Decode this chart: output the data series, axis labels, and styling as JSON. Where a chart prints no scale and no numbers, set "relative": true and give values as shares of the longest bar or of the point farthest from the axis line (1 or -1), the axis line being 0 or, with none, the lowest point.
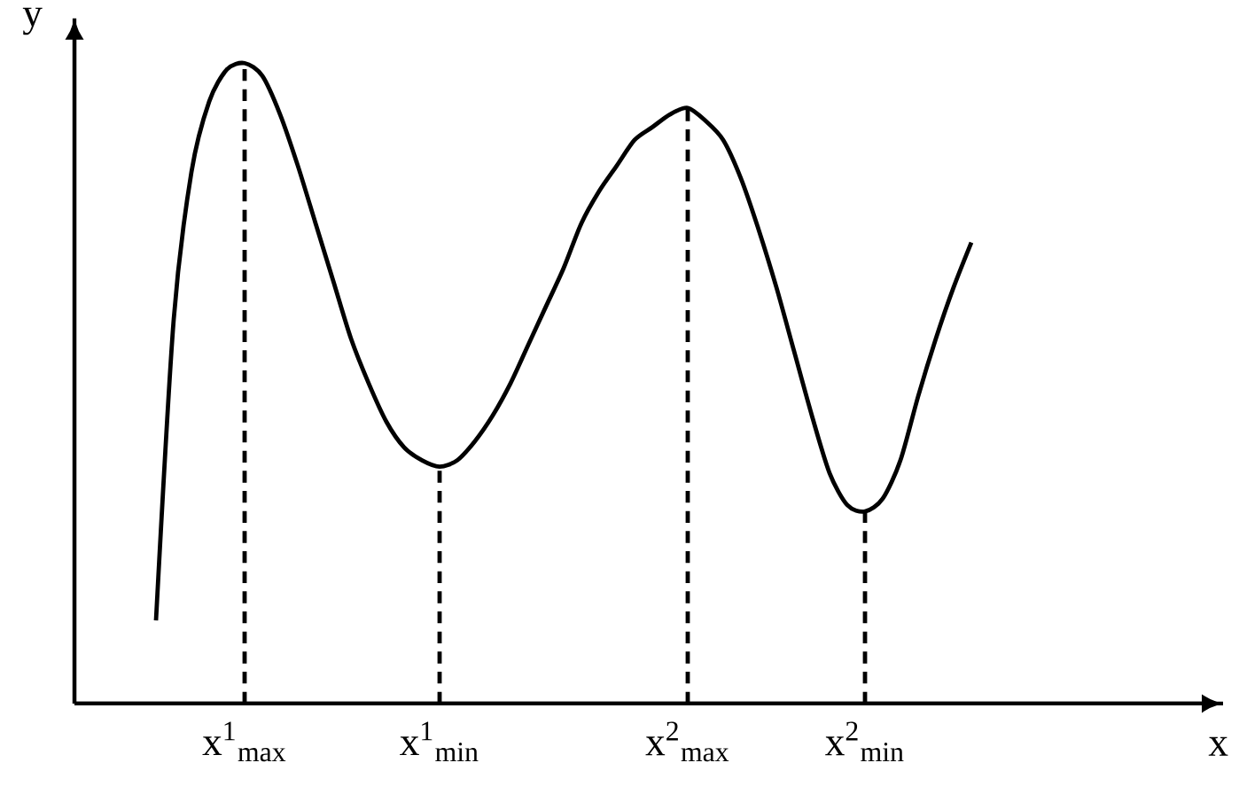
{
  "chart_data": {
    "type": "line",
    "relative": true,
    "annotations": [
      "x"
    ],
    "ylabel": "y",
    "tick_labels": "x",
    "line_style": "solid",
    "categories": [
      null,
      null,
      null,
      null,
      null,
      "x$^{1}$$_{max}$",
      null,
      null,
      null,
      null,
      null,
      null,
      null,
      null,
      null,
      null,
      "x$^{1}$$_{min}$",
      null,
      null,
      null,
      null,
      null,
      null,
      null,
      null,
      null,
      null,
      null,
      null,
      null,
      "x$^{2}$$_{max}$",
      null,
      null,
      null,
      null,
      null,
      null,
      null,
      null,
      null,
      "x$^{2}$$_{min}$",
      null,
      null,
      null,
      null,
      null,
      null
    ],
    "series": [
      {
        "color": "#000000",
        "values": [
          0.13,
          0.6,
          0.83,
          0.94,
          0.99,
          1.0,
          0.98,
          0.92,
          0.84,
          0.75,
          0.66,
          0.57,
          0.5,
          0.44,
          0.4,
          0.38,
          0.37,
          0.38,
          0.41,
          0.45,
          0.5,
          0.56,
          0.62,
          0.68,
          0.75,
          0.8,
          0.84,
          0.88,
          0.9,
          0.92,
          0.93,
          0.91,
          0.88,
          0.82,
          0.74,
          0.65,
          0.55,
          0.45,
          0.36,
          0.31,
          0.3,
          0.32,
          0.38,
          0.48,
          0.57,
          0.65,
          0.72
        ]
      }
    ],
    "ref_lines": [
      {
        "axis": "x",
        "value": "x$^{1}$$_{max}$",
        "line_style": "dashed"
      },
      {
        "axis": "x",
        "value": "x$^{1}$$_{min}$",
        "line_style": "dashed"
      },
      {
        "axis": "x",
        "value": "x$^{2}$$_{max}$",
        "line_style": "dashed"
      },
      {
        "axis": "x",
        "value": "x$^{2}$$_{min}$",
        "line_style": "dashed"
      }
    ]
  }
}
